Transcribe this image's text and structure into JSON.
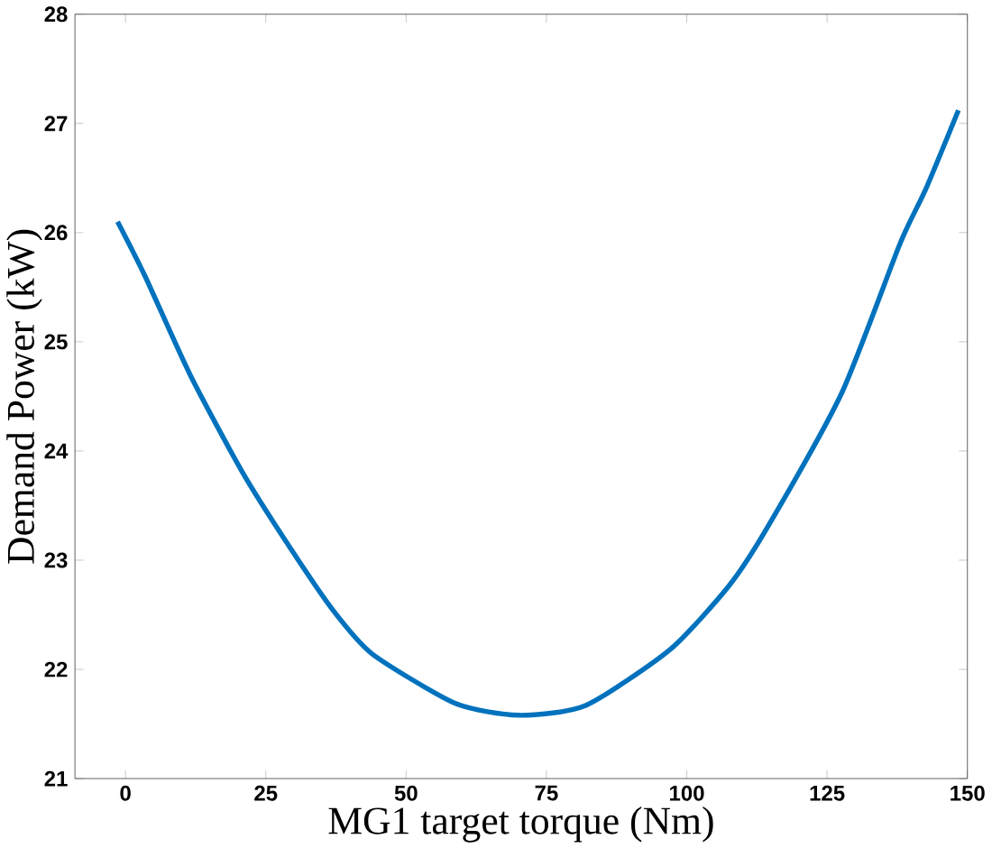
{
  "chart_data": {
    "type": "line",
    "xlabel": "MG1 target torque (Nm)",
    "ylabel": "Demand Power (kW)",
    "x": [
      -1.4,
      3.5,
      11.5,
      20.9,
      29,
      37,
      44,
      58.7,
      70,
      82,
      97,
      107.6,
      114.6,
      127.6,
      138,
      142.6,
      148.4
    ],
    "series": [
      {
        "color": "#0072bd",
        "values": [
          26.1,
          25.6,
          24.7,
          23.8,
          23.14,
          22.54,
          22.14,
          21.69,
          21.58,
          21.67,
          22.18,
          22.77,
          23.32,
          24.53,
          25.9,
          26.4,
          27.12
        ]
      }
    ],
    "xlim": [
      -9,
      150
    ],
    "ylim": [
      21,
      28
    ],
    "xticks": [
      0,
      25,
      50,
      75,
      100,
      125,
      150
    ],
    "yticks": [
      21,
      22,
      23,
      24,
      25,
      26,
      27,
      28
    ],
    "grid": false,
    "marker": "none",
    "line_style": "solid"
  }
}
